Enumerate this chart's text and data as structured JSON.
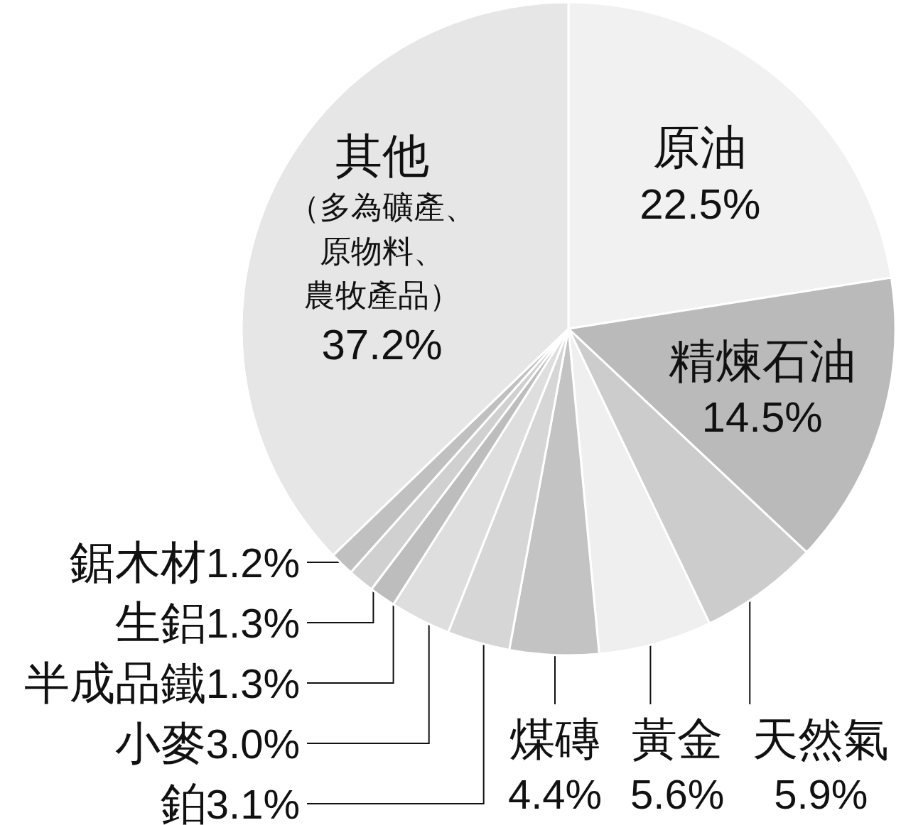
{
  "chart_data": {
    "type": "pie",
    "categories": [
      "原油",
      "精煉石油",
      "天然氣",
      "黃金",
      "煤磚",
      "鉑",
      "小麥",
      "半成品鐵",
      "生鋁",
      "鋸木材",
      "其他"
    ],
    "values": [
      22.5,
      14.5,
      5.9,
      5.6,
      4.4,
      3.1,
      3.0,
      1.3,
      1.3,
      1.2,
      37.2
    ],
    "value_labels": [
      "22.5%",
      "14.5%",
      "5.9%",
      "5.6%",
      "4.4%",
      "3.1%",
      "3.0%",
      "1.3%",
      "1.3%",
      "1.2%",
      "37.2%"
    ],
    "colors": [
      "#f1f1f1",
      "#bababa",
      "#cccccc",
      "#efefef",
      "#c3c3c3",
      "#d6d6d6",
      "#dedede",
      "#bdbdbd",
      "#d0d0d0",
      "#c0c0c0",
      "#e6e6e6"
    ],
    "annotations": [
      {
        "text": "（多為礦產、原物料、農牧產品）",
        "x": "其他"
      }
    ]
  }
}
